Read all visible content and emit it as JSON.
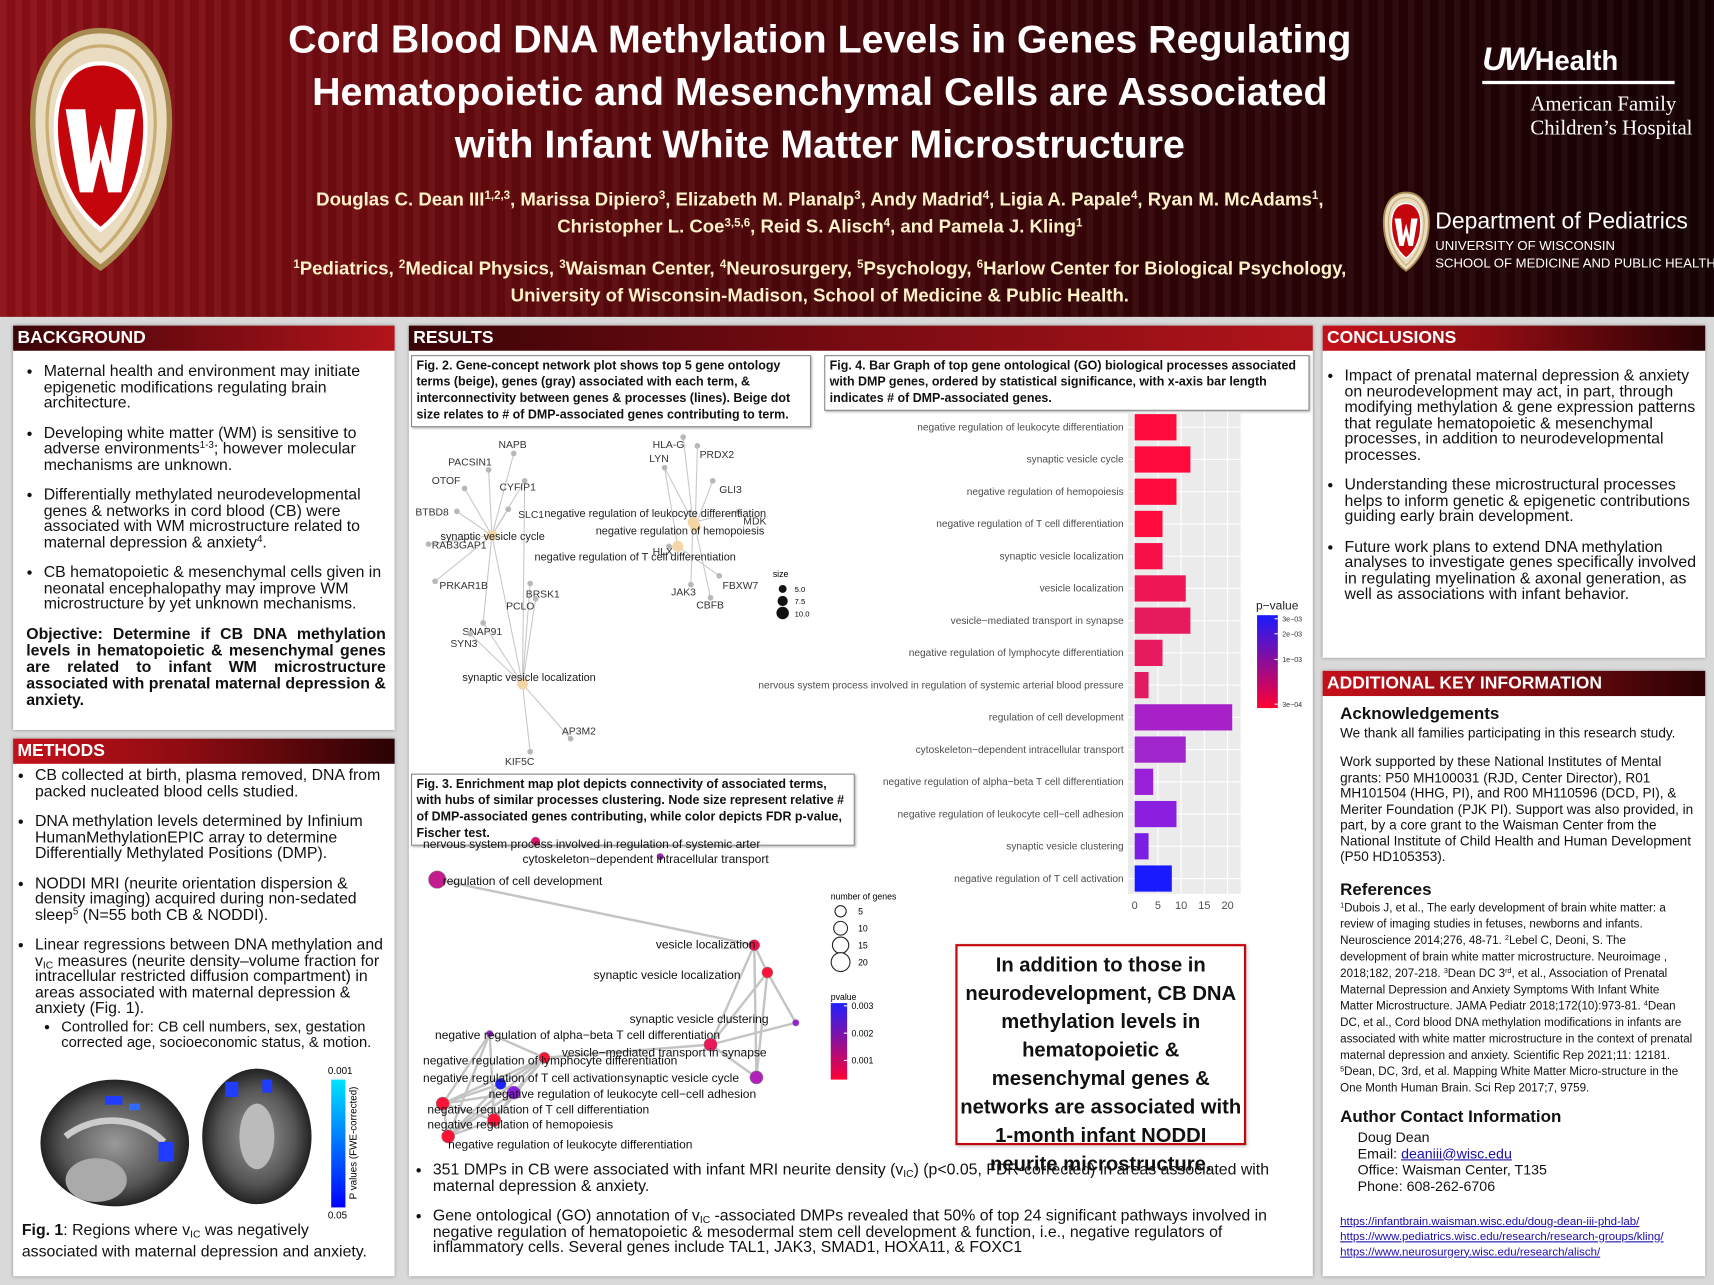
{
  "header": {
    "title": "Cord Blood DNA Methylation Levels in Genes Regulating Hematopoietic and Mesenchymal Cells are Associated with Infant White Matter Microstructure",
    "authors": [
      "Douglas C. Dean III",
      {
        "sup": "1,2,3"
      },
      ", Marissa Dipiero",
      {
        "sup": "3"
      },
      ", Elizabeth M. Planalp",
      {
        "sup": "3"
      },
      ", Andy Madrid",
      {
        "sup": "4"
      },
      ", Ligia A. Papale",
      {
        "sup": "4"
      },
      ", Ryan M. McAdams",
      {
        "sup": "1"
      },
      ", Christopher L. Coe",
      {
        "sup": "3,5,6"
      },
      ", Reid S. Alisch",
      {
        "sup": "4"
      },
      ", and Pamela J. Kling",
      {
        "sup": "1"
      }
    ],
    "affiliations": [
      {
        "sup": "1"
      },
      "Pediatrics, ",
      {
        "sup": "2"
      },
      "Medical Physics, ",
      {
        "sup": "3"
      },
      "Waisman Center, ",
      {
        "sup": "4"
      },
      "Neurosurgery, ",
      {
        "sup": "5"
      },
      "Psychology, ",
      {
        "sup": "6"
      },
      "Harlow Center for Biological Psychology, University of Wisconsin-Madison, School of Medicine & Public Health."
    ],
    "uw": "UW",
    "health": "Health",
    "hospital_line1": "American Family",
    "hospital_line2": "Children’s Hospital",
    "department": "Department of Pediatrics",
    "university": "UNIVERSITY OF WISCONSIN",
    "school": "SCHOOL OF MEDICINE AND PUBLIC HEALTH"
  },
  "background": {
    "heading": "BACKGROUND",
    "bullets": [
      "Maternal health and environment may initiate epigenetic modifications regulating brain architecture.",
      [
        "Developing white matter (WM) is sensitive to adverse environments",
        {
          "sup": "1-3"
        },
        "; however molecular mechanisms are unknown."
      ],
      [
        "Differentially methylated neurodevelopmental genes & networks in cord blood (CB) were associated with WM microstructure related to maternal depression & anxiety",
        {
          "sup": "4"
        },
        "."
      ],
      "CB hematopoietic & mesenchymal cells given in neonatal encephalopathy may improve WM microstructure by yet unknown mechanisms."
    ],
    "objective": "Objective: Determine if CB DNA methylation levels in hematopoietic & mesenchymal genes are related to infant WM microstructure associated with prenatal maternal depression & anxiety."
  },
  "methods": {
    "heading": "METHODS",
    "bullets": [
      "CB collected at birth, plasma removed, DNA from packed nucleated blood cells studied.",
      "DNA methylation levels determined by Infinium HumanMethylationEPIC array to determine Differentially Methylated Positions (DMP).",
      [
        "NODDI MRI (neurite orientation dispersion & density imaging) acquired during non-sedated sleep",
        {
          "sup": "5"
        },
        " (N=55 both CB & NODDI)."
      ],
      [
        "Linear regressions between DNA methylation and v",
        {
          "sub": "IC"
        },
        " measures (neurite density–volume fraction for intracellular restricted diffusion compartment) in areas associated with maternal depression & anxiety (Fig. 1)."
      ]
    ],
    "sub_bullets": [
      "Controlled for: CB cell numbers, sex, gestation corrected age, socioeconomic status, & motion."
    ],
    "fig1_caption": [
      {
        "b": "Fig. 1"
      },
      ": Regions where v",
      {
        "sub": "IC"
      },
      " was negatively associated with maternal depression and anxiety."
    ],
    "fig1_colorbar": {
      "title": "P values (FWE-corrected)",
      "ticks": [
        0.001,
        0.05
      ]
    }
  },
  "results": {
    "heading": "RESULTS",
    "fig2_caption": "Fig. 2. Gene-concept network plot shows top 5 gene ontology terms (beige), genes (gray) associated with each term, & interconnectivity between genes & processes (lines). Beige dot size relates to # of DMP-associated genes contributing to term.",
    "fig2": {
      "terms": [
        "synaptic vesicle cycle",
        "synaptic vesicle localization",
        "negative regulation of leukocyte differentiation",
        "negative regulation of hemopoiesis",
        "negative regulation of T cell differentiation"
      ],
      "genes": [
        "NAPB",
        "PACSIN1",
        "OTOF",
        "CYFIP1",
        "BTBD8",
        "SLC1",
        "RAB3GAP1",
        "PRKAR1B",
        "BRSK1",
        "PCLO",
        "SNAP91",
        "SYN3",
        "AP3M2",
        "KIF5C",
        "HLA-G",
        "LYN",
        "PRDX2",
        "GLI3",
        "MDK",
        "HLX",
        "FBXW7",
        "JAK3",
        "CBFB"
      ],
      "size_legend": {
        "title": "size",
        "ticks": [
          {
            "value": 5,
            "label": "5.0"
          },
          {
            "value": 7.5,
            "label": "7.5"
          },
          {
            "value": 10,
            "label": "10.0"
          }
        ]
      }
    },
    "fig4_caption": "Fig. 4. Bar Graph of top gene ontological (GO) biological processes associated with DMP genes, ordered by statistical significance, with x-axis bar length indicates # of DMP-associated genes.",
    "fig3_caption": "Fig. 3. Enrichment map plot depicts connectivity of associated terms, with hubs of similar processes clustering. Node size represent relative # of DMP-associated genes contributing, while color depicts FDR p-value, Fischer test.",
    "fig3": {
      "nodes": [
        {
          "label": "nervous system process involved in regulation of systemic arter",
          "color": "#e3106c"
        },
        {
          "label": "cytoskeleton−dependent intracellular transport",
          "color": "#a323c8"
        },
        {
          "label": "regulation of cell development",
          "color": "#c21c8e"
        },
        {
          "label": "vesicle localization",
          "color": "#f0124a"
        },
        {
          "label": "synaptic vesicle localization",
          "color": "#ff1238"
        },
        {
          "label": "synaptic vesicle clustering",
          "color": "#9c1fd6"
        },
        {
          "label": "negative regulation of alpha−beta T cell differentiation",
          "color": "#9a20d6"
        },
        {
          "label": "vesicle−mediated transport in synapse",
          "color": "#ea1858"
        },
        {
          "label": "negative regulation of lymphocyte differentiation",
          "color": "#ff1238"
        },
        {
          "label": "negative regulation of T cell activation",
          "color": "#2020ff"
        },
        {
          "label": "synaptic vesicle cycle",
          "color": "#b120b8"
        },
        {
          "label": "negative regulation of leukocyte cell−cell adhesion",
          "color": "#8a1fe0"
        },
        {
          "label": "negative regulation of T cell differentiation",
          "color": "#ff1238"
        },
        {
          "label": "negative regulation of hemopoiesis",
          "color": "#ff1238"
        },
        {
          "label": "negative regulation of leukocyte differentiation",
          "color": "#ff1238"
        }
      ],
      "size_legend": {
        "title": "number of genes",
        "ticks": [
          5,
          10,
          15,
          20
        ]
      },
      "color_legend": {
        "title": "pvalue",
        "lim": [
          0.0003,
          0.0031
        ],
        "ticks": [
          0.003,
          0.002,
          0.001
        ],
        "colors": [
          "#2020ff",
          "#ff0033"
        ]
      }
    },
    "bullets": [
      [
        "351 DMPs in CB were associated with infant MRI neurite density (v",
        {
          "sub": "IC"
        },
        ") (p<0.05, FDR-corrected) in areas associated with maternal depression & anxiety."
      ],
      [
        "Gene ontological (GO) annotation of v",
        {
          "sub": "IC"
        },
        " -associated DMPs revealed that 50% of top 24 significant pathways involved in negative regulation of hematopoietic & mesodermal stem cell development & function, i.e., negative regulators of inflammatory cells. Several genes include TAL1, JAK3, SMAD1, HOXA11, & FOXC1"
      ]
    ],
    "callout": "In addition to those in neurodevelopment, CB DNA methylation levels in hematopoietic & mesenchymal genes & networks are associated with 1-month infant NODDI neurite microstructure."
  },
  "chart_data": {
    "type": "bar",
    "orientation": "horizontal",
    "categories": [
      "negative regulation of leukocyte differentiation",
      "synaptic vesicle cycle",
      "negative regulation of hemopoiesis",
      "negative regulation of T cell differentiation",
      "synaptic vesicle localization",
      "vesicle localization",
      "vesicle−mediated transport in synapse",
      "negative regulation of lymphocyte differentiation",
      "nervous system process involved in regulation of systemic arterial blood pressure",
      "regulation of cell development",
      "cytoskeleton−dependent intracellular transport",
      "negative regulation of alpha−beta T cell differentiation",
      "negative regulation of leukocyte cell−cell adhesion",
      "synaptic vesicle clustering",
      "negative regulation of T cell activation"
    ],
    "values": [
      9,
      12,
      9,
      6,
      6,
      11,
      12,
      6,
      3,
      21,
      11,
      4,
      9,
      3,
      8
    ],
    "colors": [
      "#ff0a3c",
      "#ff0a3c",
      "#ff0a3c",
      "#ff0a3c",
      "#f70f48",
      "#ee1655",
      "#e81a5e",
      "#e81a5e",
      "#e31b63",
      "#a821c8",
      "#a126ce",
      "#9a1fd8",
      "#8b1fe0",
      "#7a1ee6",
      "#1a1aff"
    ],
    "xlim": [
      0,
      21.5
    ],
    "xticks": [
      0,
      5,
      10,
      15,
      20
    ],
    "grid": true,
    "legend": {
      "title": "p−value",
      "log": true,
      "lim": [
        0.00027,
        0.0033
      ],
      "colors": [
        "#1a1aff",
        "#ff0033"
      ],
      "ticks": [
        {
          "value": 0.003,
          "label": "3e−03"
        },
        {
          "value": 0.002,
          "label": "2e−03"
        },
        {
          "value": 0.001,
          "label": "1e−03"
        },
        {
          "value": 0.0003,
          "label": "3e−04"
        }
      ]
    }
  },
  "conclusions": {
    "heading": "CONCLUSIONS",
    "bullets": [
      "Impact of prenatal maternal depression & anxiety on neurodevelopment may act, in part, through modifying methylation & gene expression patterns that regulate hematopoietic & mesenchymal processes, in addition to neurodevelopmental processes.",
      "Understanding these microstructural processes helps to inform genetic & epigenetic contributions guiding early brain development.",
      "Future work plans to extend DNA methylation analyses to investigate genes specifically involved in regulating myelination & axonal generation, as well as associations with infant behavior."
    ]
  },
  "additional": {
    "heading": "ADDITIONAL KEY INFORMATION",
    "acknowledgements_heading": "Acknowledgements",
    "acknowledgements": "We thank all families participating in this research study.",
    "funding": "Work supported by these National Institutes of Mental grants: P50 MH100031 (RJD, Center Director), R01 MH101504 (HHG, PI), and R00 MH110596 (DCD, PI), & Meriter Foundation (PJK PI). Support was also provided, in part, by a core grant to the Waisman Center from the National Institute of Child Health and Human Development (P50 HD105353).",
    "references_heading": "References",
    "references": [
      {
        "sup": "1"
      },
      "Dubois J, et al., The early development of brain white matter: a review of imaging studies in fetuses, newborns and infants. Neuroscience 2014;276, 48-71. ",
      {
        "sup": "2"
      },
      "Lebel C, Deoni, S. The development of brain white matter microstructure. Neuroimage , 2018;182, 207-218. ",
      {
        "sup": "3"
      },
      "Dean DC 3",
      {
        "sup": "rd"
      },
      ", et al., Association of Prenatal Maternal Depression and Anxiety Symptoms With Infant White Matter Microstructure. JAMA Pediatr 2018;172(10):973-81. ",
      {
        "sup": "4"
      },
      "Dean DC, et al., Cord blood DNA methylation modifications in infants are associated with white matter microstructure in the context of prenatal maternal depression and anxiety. Scientific Rep 2021;11: 12181. ",
      {
        "sup": "5"
      },
      "Dean, DC, 3rd, et al. Mapping White Matter Micro-structure in the One Month Human Brain. Sci Rep 2017;7, 9759."
    ],
    "contact_heading": "Author Contact Information",
    "contact_name": "Doug Dean",
    "email_label": "Email: ",
    "email": "deaniii@wisc.edu",
    "office": "Office: Waisman Center, T135",
    "phone": "Phone: 608-262-6706",
    "links": [
      "https://infantbrain.waisman.wisc.edu/doug-dean-iii-phd-lab/",
      "https://www.pediatrics.wisc.edu/research/research-groups/kling/",
      "https://www.neurosurgery.wisc.edu/research/alisch/"
    ]
  }
}
